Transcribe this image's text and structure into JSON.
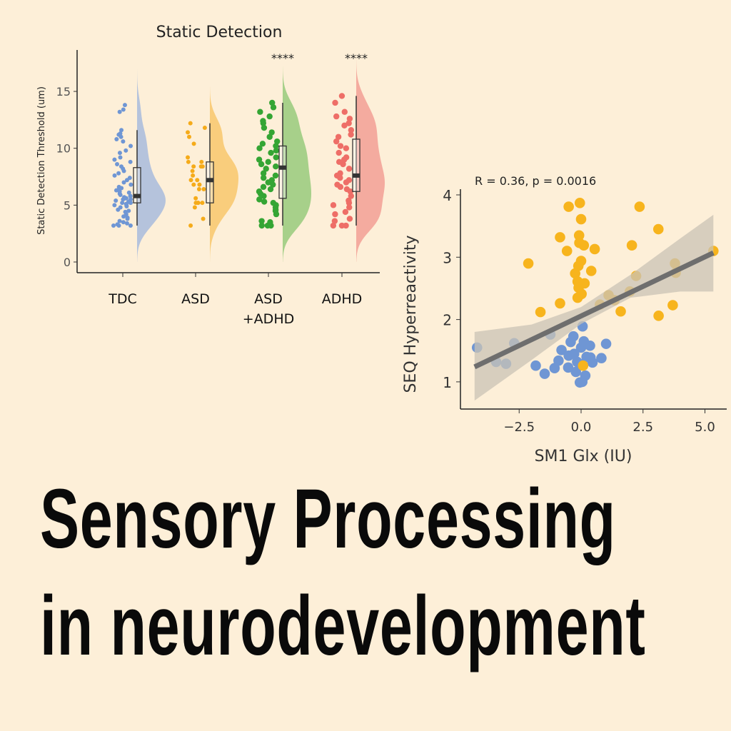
{
  "headline": {
    "line1": "Sensory Processing",
    "line2": "in neurodevelopment"
  },
  "chart_data": [
    {
      "type": "raincloud",
      "title": "Static Detection",
      "ylabel": "Static Detection Threshold (um)",
      "xlabel": "",
      "ylim": [
        -1,
        18.5
      ],
      "yticks": [
        "0",
        "5",
        "10",
        "15"
      ],
      "categories": [
        {
          "label": "TDC",
          "label2": "",
          "signif": "",
          "color": "#6f96d4",
          "violin_color": "#b5c3dc",
          "box": {
            "min": 3.2,
            "q1": 5.2,
            "median": 5.8,
            "q3": 8.3,
            "max": 11.6
          },
          "values": [
            3.2,
            3.2,
            3.2,
            3.3,
            3.4,
            3.5,
            3.6,
            3.8,
            3.9,
            4.0,
            4.2,
            4.4,
            4.5,
            4.6,
            4.8,
            4.9,
            5.0,
            5.0,
            5.1,
            5.2,
            5.2,
            5.3,
            5.4,
            5.5,
            5.5,
            5.6,
            5.6,
            5.7,
            5.8,
            5.8,
            5.9,
            6.0,
            6.1,
            6.2,
            6.3,
            6.4,
            6.5,
            6.6,
            6.8,
            7.0,
            7.2,
            7.4,
            7.6,
            7.8,
            8.0,
            8.2,
            8.4,
            8.6,
            8.8,
            9.0,
            9.2,
            9.6,
            9.8,
            10.2,
            10.6,
            10.8,
            11.0,
            11.2,
            11.3,
            11.6,
            13.2,
            13.4,
            13.8
          ]
        },
        {
          "label": "ASD",
          "label2": "",
          "signif": "",
          "color": "#f5ab1a",
          "violin_color": "#f9cd7c",
          "box": {
            "min": 3.2,
            "q1": 5.2,
            "median": 7.2,
            "q3": 8.8,
            "max": 12.2
          },
          "values": [
            3.2,
            3.8,
            4.8,
            5.2,
            5.2,
            5.2,
            5.2,
            5.6,
            6.4,
            6.4,
            6.8,
            6.8,
            7.2,
            7.2,
            7.6,
            8.0,
            8.4,
            8.4,
            8.4,
            8.8,
            8.8,
            9.2,
            10.4,
            11.0,
            11.4,
            11.8,
            12.2
          ]
        },
        {
          "label": "ASD",
          "label2": "+ADHD",
          "signif": "****",
          "color": "#35a534",
          "violin_color": "#a7d08a",
          "box": {
            "min": 3.2,
            "q1": 5.6,
            "median": 8.3,
            "q3": 10.2,
            "max": 14.0
          },
          "values": [
            3.2,
            3.2,
            3.2,
            3.5,
            3.6,
            4.2,
            4.5,
            4.6,
            4.8,
            5.0,
            5.2,
            5.3,
            5.5,
            5.8,
            6.0,
            6.2,
            6.4,
            6.6,
            6.8,
            7.0,
            7.2,
            7.4,
            7.6,
            7.8,
            8.2,
            8.4,
            8.6,
            8.8,
            9.0,
            9.2,
            9.6,
            9.8,
            10.0,
            10.2,
            10.4,
            10.6,
            11.0,
            11.4,
            11.8,
            12.2,
            12.4,
            12.8,
            13.2,
            13.6,
            14.0
          ]
        },
        {
          "label": "ADHD",
          "label2": "",
          "signif": "****",
          "color": "#ee6e67",
          "violin_color": "#f4ab9f",
          "box": {
            "min": 3.2,
            "q1": 6.2,
            "median": 7.6,
            "q3": 10.8,
            "max": 14.6
          },
          "values": [
            3.2,
            3.2,
            3.2,
            3.6,
            3.8,
            4.2,
            4.4,
            4.8,
            5.0,
            5.2,
            5.4,
            5.8,
            6.2,
            6.4,
            6.6,
            6.8,
            7.0,
            7.2,
            7.4,
            7.6,
            7.8,
            8.2,
            8.6,
            8.8,
            9.0,
            9.2,
            9.6,
            10.0,
            10.2,
            10.6,
            11.0,
            11.2,
            11.6,
            12.0,
            12.2,
            12.6,
            12.8,
            13.2,
            14.0,
            14.6
          ]
        }
      ]
    },
    {
      "type": "scatter",
      "title": "",
      "annotation": "R = 0.36, p = 0.0016",
      "xlabel": "SM1 Glx (IU)",
      "ylabel": "SEQ Hyperreactivity",
      "xlim": [
        -4.9,
        6.1
      ],
      "ylim": [
        0.55,
        4.15
      ],
      "xticks": [
        "−2.5",
        "0.0",
        "2.5",
        "5.0"
      ],
      "yticks": [
        "1",
        "2",
        "3",
        "4"
      ],
      "series": [
        {
          "color": "#6f96d4",
          "points": [
            [
              -4.2,
              1.55
            ],
            [
              -3.43,
              1.32
            ],
            [
              -3.03,
              1.29
            ],
            [
              -2.7,
              1.62
            ],
            [
              -1.83,
              1.26
            ],
            [
              -1.47,
              1.13
            ],
            [
              -1.24,
              1.76
            ],
            [
              -1.07,
              1.22
            ],
            [
              -0.91,
              1.34
            ],
            [
              -0.79,
              1.51
            ],
            [
              -0.52,
              1.23
            ],
            [
              -0.5,
              1.42
            ],
            [
              -0.42,
              1.64
            ],
            [
              -0.31,
              1.73
            ],
            [
              -0.21,
              1.16
            ],
            [
              -0.16,
              1.32
            ],
            [
              -0.05,
              0.99
            ],
            [
              0.0,
              1.55
            ],
            [
              0.06,
              1.89
            ],
            [
              0.11,
              1.65
            ],
            [
              0.17,
              1.1
            ],
            [
              0.22,
              1.4
            ],
            [
              0.36,
              1.58
            ],
            [
              0.38,
              1.39
            ],
            [
              0.46,
              1.31
            ],
            [
              0.82,
              1.38
            ],
            [
              1.01,
              1.61
            ],
            [
              0.0,
              1.28
            ],
            [
              0.05,
              1.0
            ],
            [
              -0.28,
              1.45
            ]
          ]
        },
        {
          "color": "#f7b41d",
          "points": [
            [
              -2.13,
              2.9
            ],
            [
              -1.64,
              2.12
            ],
            [
              -0.85,
              2.26
            ],
            [
              -0.85,
              3.32
            ],
            [
              -0.57,
              3.1
            ],
            [
              -0.5,
              3.81
            ],
            [
              -0.05,
              3.87
            ],
            [
              0.0,
              3.61
            ],
            [
              -0.08,
              3.35
            ],
            [
              -0.07,
              3.23
            ],
            [
              0.11,
              3.19
            ],
            [
              0.55,
              3.13
            ],
            [
              0.0,
              2.94
            ],
            [
              -0.11,
              2.86
            ],
            [
              -0.24,
              2.74
            ],
            [
              -0.14,
              2.61
            ],
            [
              0.14,
              2.58
            ],
            [
              -0.1,
              2.51
            ],
            [
              0.02,
              2.41
            ],
            [
              -0.14,
              2.35
            ],
            [
              0.41,
              2.78
            ],
            [
              0.08,
              1.26
            ],
            [
              0.76,
              2.24
            ],
            [
              1.11,
              2.39
            ],
            [
              1.35,
              2.31
            ],
            [
              1.6,
              2.13
            ],
            [
              1.97,
              2.45
            ],
            [
              2.05,
              3.19
            ],
            [
              2.22,
              2.7
            ],
            [
              2.36,
              3.81
            ],
            [
              3.12,
              3.45
            ],
            [
              3.13,
              2.06
            ],
            [
              3.7,
              2.23
            ],
            [
              3.79,
              2.9
            ],
            [
              3.82,
              2.75
            ],
            [
              5.34,
              3.1
            ]
          ]
        }
      ],
      "fit": {
        "x": [
          -4.3,
          5.34
        ],
        "y": [
          1.24,
          3.07
        ],
        "color": "#6e6e6e",
        "ci": {
          "x": [
            -4.3,
            -2,
            0,
            2,
            4,
            5.34
          ],
          "lower": [
            0.7,
            1.35,
            1.93,
            2.35,
            2.45,
            2.45
          ],
          "upper": [
            1.8,
            1.92,
            2.2,
            2.72,
            3.3,
            3.68
          ],
          "color": "#c9c3b6"
        }
      }
    }
  ]
}
